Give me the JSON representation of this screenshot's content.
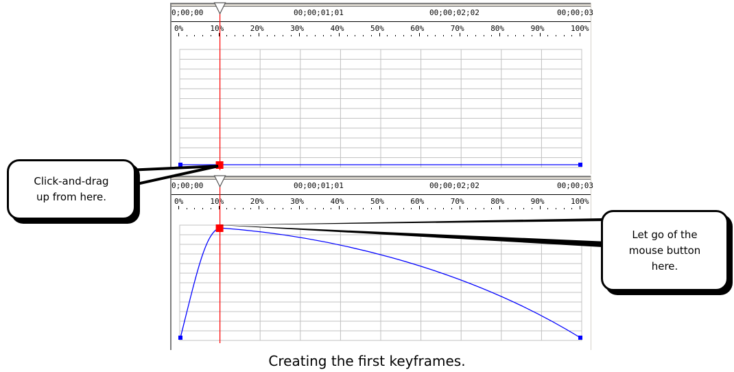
{
  "timeline_top": {
    "timecodes": [
      "0;00;00",
      "00;00;01;01",
      "00;00;02;02",
      "00;00;03"
    ],
    "percents": [
      "0%",
      "10%",
      "20%",
      "30%",
      "40%",
      "50%",
      "60%",
      "70%",
      "80%",
      "90%",
      "100%"
    ],
    "playhead_percent": 10,
    "curve": {
      "start_level": 0,
      "keyframe_level": 0,
      "end_level": 0
    }
  },
  "timeline_bottom": {
    "timecodes": [
      "0;00;00",
      "00;00;01;01",
      "00;00;02;02",
      "00;00;03"
    ],
    "percents": [
      "0%",
      "10%",
      "20%",
      "30%",
      "40%",
      "50%",
      "60%",
      "70%",
      "80%",
      "90%",
      "100%"
    ],
    "playhead_percent": 10,
    "curve": {
      "start_level": 0,
      "keyframe_level": 1,
      "end_level": 0
    }
  },
  "callouts": {
    "left": "Click-and-drag up from here.",
    "left_lines": [
      "Click-and-drag",
      "up from here."
    ],
    "right_lines": [
      "Let go of the",
      "mouse button",
      "here."
    ]
  },
  "colors": {
    "playhead": "#ff0000",
    "curve": "#0000ff",
    "keyframe_selected": "#ff0000",
    "keyframe": "#0000ff",
    "grid": "#c0c0c0"
  },
  "caption": "Creating the first keyframes."
}
